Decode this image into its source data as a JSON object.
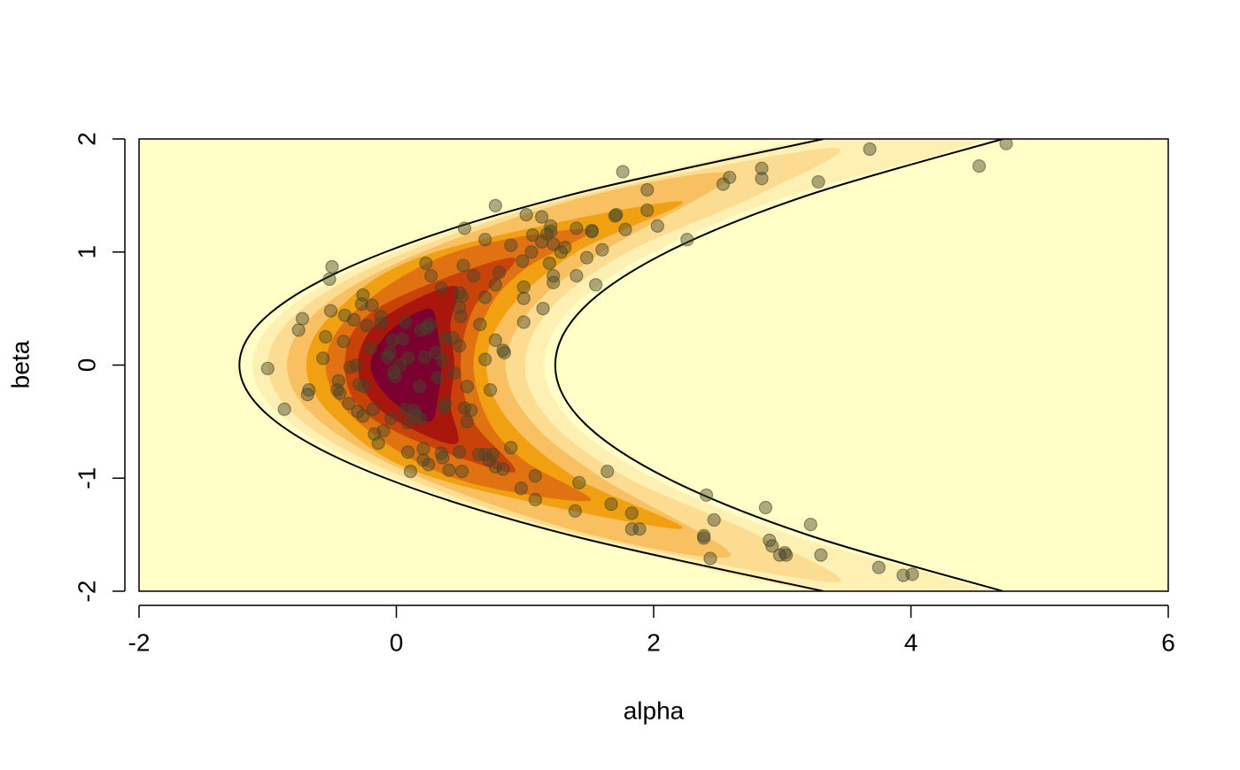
{
  "chart_data": {
    "type": "contour",
    "xlabel": "alpha",
    "ylabel": "beta",
    "xlim": [
      -2,
      6
    ],
    "ylim": [
      -2,
      2
    ],
    "xticks": [
      -2,
      0,
      2,
      4,
      6
    ],
    "yticks": [
      -2,
      -1,
      0,
      1,
      2
    ],
    "background": "#FFFFC8",
    "contours": [
      {
        "color": "#FEEFB2",
        "x": [
          -1.12,
          -0.845,
          -0.02,
          1.355,
          3.28,
          4.55,
          3.06,
          2.0,
          1.36,
          1.15,
          1.36,
          2.0,
          3.06,
          4.55,
          3.28,
          1.355,
          -0.02,
          -0.845
        ],
        "y": [
          0,
          0.5,
          1,
          1.5,
          2,
          2,
          1.5,
          1,
          0.5,
          0,
          -0.5,
          -1,
          -1.5,
          -2,
          -2,
          -1.5,
          -1,
          -0.5
        ]
      },
      {
        "color": "#FCDC90",
        "x": [
          -1.0,
          -0.73,
          0.08,
          1.43,
          3.4,
          2.8,
          1.8,
          1.2,
          1.0,
          1.2,
          1.8,
          2.8,
          3.4,
          1.43,
          0.08,
          -0.73
        ],
        "y": [
          0,
          0.5,
          1,
          1.5,
          1.92,
          1.5,
          1,
          0.5,
          0,
          -0.5,
          -1,
          -1.5,
          -1.92,
          -1.5,
          -1,
          -0.5
        ]
      },
      {
        "color": "#F8C060",
        "x": [
          -0.85,
          -0.59,
          0.2,
          1.51,
          2.6,
          1.6,
          1.05,
          0.85,
          1.05,
          1.6,
          2.6,
          1.51,
          0.2,
          -0.59
        ],
        "y": [
          0,
          0.5,
          1,
          1.5,
          1.68,
          1,
          0.5,
          0,
          -0.5,
          -1,
          -1.68,
          -1.5,
          -1,
          -0.5
        ]
      },
      {
        "color": "#F0A010",
        "x": [
          -0.7,
          -0.45,
          0.3,
          2.2,
          1.4,
          0.88,
          0.7,
          0.88,
          1.4,
          2.2,
          0.3,
          -0.45
        ],
        "y": [
          0,
          0.5,
          1,
          1.45,
          1,
          0.5,
          0,
          -0.5,
          -1,
          -1.45,
          -1,
          -0.5
        ]
      },
      {
        "color": "#E07212",
        "x": [
          -0.55,
          -0.3,
          0.45,
          1.5,
          1.0,
          0.72,
          0.6,
          0.72,
          1.0,
          1.5,
          0.45,
          -0.3
        ],
        "y": [
          0,
          0.5,
          1,
          1.2,
          0.85,
          0.5,
          0,
          -0.5,
          -0.85,
          -1.2,
          -1,
          -0.5
        ]
      },
      {
        "color": "#C8420A",
        "x": [
          -0.4,
          -0.15,
          0.9,
          0.6,
          0.5,
          0.6,
          0.9,
          -0.15
        ],
        "y": [
          0,
          0.5,
          0.95,
          0.5,
          0,
          -0.5,
          -0.95,
          -0.5
        ]
      },
      {
        "color": "#A8160C",
        "x": [
          -0.3,
          -0.12,
          0.45,
          0.42,
          0.45,
          0.42,
          0.45,
          -0.12
        ],
        "y": [
          0,
          0.4,
          0.7,
          0.35,
          0,
          -0.35,
          -0.7,
          -0.4
        ]
      },
      {
        "color": "#7B0030",
        "x": [
          -0.2,
          -0.05,
          0.25,
          0.32,
          0.35,
          0.32,
          0.25,
          -0.05
        ],
        "y": [
          0,
          0.3,
          0.5,
          0.3,
          0,
          -0.3,
          -0.5,
          -0.3
        ]
      }
    ],
    "curves": [
      {
        "color": "#000000",
        "x": [
          3.32,
          1.334,
          -0.085,
          -0.936,
          -1.22,
          -0.936,
          -0.085,
          1.334,
          3.32
        ],
        "y": [
          -2,
          -1.5,
          -1,
          -0.5,
          0,
          0.5,
          1,
          1.5,
          2
        ]
      },
      {
        "color": "#000000",
        "x": [
          4.715,
          3.193,
          2.105,
          1.45,
          1.235,
          1.45,
          2.105,
          3.193,
          4.715
        ],
        "y": [
          -2,
          -1.5,
          -1,
          -0.5,
          0,
          0.5,
          1,
          1.5,
          2
        ]
      }
    ],
    "points": {
      "color": "#46462a",
      "x": [
        -1.0,
        -0.87,
        -0.68,
        -0.69,
        -0.76,
        -0.73,
        -0.52,
        -0.5,
        -0.51,
        -0.55,
        -0.57,
        -0.45,
        -0.46,
        -0.44,
        -0.41,
        -0.4,
        -0.36,
        -0.31,
        -0.33,
        -0.26,
        -0.27,
        -0.29,
        -0.25,
        -0.37,
        -0.3,
        -0.26,
        -0.19,
        -0.23,
        -0.2,
        -0.18,
        -0.17,
        -0.14,
        -0.1,
        -0.12,
        -0.12,
        -0.05,
        -0.03,
        -0.07,
        -0.02,
        -0.04,
        0.03,
        0.05,
        0.07,
        -0.01,
        0.07,
        0.09,
        0.09,
        0.09,
        0.11,
        0.14,
        0.15,
        0.18,
        0.19,
        0.19,
        0.22,
        0.21,
        0.23,
        0.21,
        0.25,
        0.27,
        0.26,
        0.24,
        0.31,
        0.32,
        0.35,
        0.36,
        0.35,
        0.36,
        0.38,
        0.38,
        0.37,
        0.41,
        0.44,
        0.45,
        0.49,
        0.49,
        0.5,
        0.49,
        0.49,
        0.51,
        0.52,
        0.51,
        0.53,
        0.55,
        0.53,
        0.55,
        0.58,
        0.6,
        0.65,
        0.69,
        0.69,
        0.69,
        0.64,
        0.69,
        0.72,
        0.75,
        0.77,
        0.77,
        0.73,
        0.77,
        0.77,
        0.8,
        0.83,
        0.84,
        0.83,
        0.89,
        0.89,
        0.97,
        0.98,
        0.99,
        0.99,
        0.99,
        1.01,
        1.05,
        1.06,
        1.08,
        1.08,
        1.13,
        1.13,
        1.14,
        1.17,
        1.19,
        1.2,
        1.2,
        1.22,
        1.22,
        1.22,
        1.28,
        1.31,
        1.4,
        1.4,
        1.39,
        1.42,
        1.48,
        1.52,
        1.52,
        1.55,
        1.6,
        1.64,
        1.67,
        1.7,
        1.71,
        1.76,
        1.78,
        1.83,
        1.83,
        1.89,
        1.95,
        1.95,
        2.03,
        2.26,
        2.39,
        2.39,
        2.41,
        2.44,
        2.47,
        2.54,
        2.59,
        2.84,
        2.84,
        2.87,
        2.9,
        2.92,
        2.98,
        3.02,
        3.03,
        3.22,
        3.28,
        3.3,
        3.68,
        3.75,
        3.94,
        4.01,
        4.53,
        4.74
      ],
      "y": [
        -0.03,
        -0.39,
        -0.22,
        -0.26,
        0.31,
        0.41,
        0.76,
        0.87,
        0.48,
        0.25,
        0.06,
        -0.14,
        -0.22,
        -0.25,
        0.21,
        0.44,
        -0.02,
        0.0,
        0.4,
        0.62,
        0.54,
        -0.17,
        -0.19,
        -0.34,
        -0.41,
        -0.45,
        0.53,
        0.35,
        0.15,
        -0.39,
        -0.61,
        -0.69,
        -0.58,
        0.43,
        0.37,
        0.11,
        0.22,
        0.07,
        -0.06,
        -0.47,
        0.0,
        0.23,
        0.38,
        -0.1,
        -0.39,
        0.06,
        -0.51,
        -0.77,
        -0.94,
        -0.4,
        -0.45,
        -0.19,
        -0.48,
        0.31,
        0.07,
        -0.74,
        0.9,
        -0.84,
        -0.88,
        0.79,
        0.36,
        0.33,
        0.11,
        -0.11,
        -0.78,
        -0.82,
        0.68,
        0.04,
        0.24,
        -0.34,
        -0.38,
        -0.93,
        0.24,
        -0.07,
        -0.77,
        0.17,
        0.43,
        0.51,
        0.64,
        0.61,
        0.88,
        -0.94,
        1.21,
        -0.19,
        -0.38,
        -0.5,
        -0.4,
        0.79,
        0.36,
        1.11,
        0.05,
        0.6,
        -0.79,
        -0.79,
        -0.84,
        -0.79,
        -0.9,
        0.71,
        -0.22,
        0.22,
        1.41,
        0.82,
        0.13,
        0.11,
        -0.92,
        -0.73,
        1.06,
        -1.09,
        0.92,
        0.69,
        0.59,
        0.38,
        1.33,
        1.0,
        1.15,
        -0.98,
        -1.19,
        1.31,
        1.09,
        0.5,
        1.16,
        0.9,
        1.23,
        1.18,
        0.79,
        0.73,
        1.07,
        1.0,
        1.04,
        1.21,
        0.79,
        -1.29,
        -1.04,
        0.95,
        1.19,
        1.18,
        0.71,
        1.02,
        -0.94,
        -1.23,
        1.32,
        1.33,
        1.71,
        1.2,
        -1.31,
        -1.45,
        -1.45,
        1.37,
        1.55,
        1.23,
        1.11,
        -1.51,
        -1.53,
        -1.15,
        -1.71,
        -1.37,
        1.6,
        1.66,
        1.74,
        1.65,
        -1.26,
        -1.55,
        -1.6,
        -1.68,
        -1.66,
        -1.68,
        -1.41,
        1.62,
        -1.68,
        1.91,
        -1.79,
        -1.86,
        -1.85,
        1.76,
        1.96
      ]
    }
  }
}
